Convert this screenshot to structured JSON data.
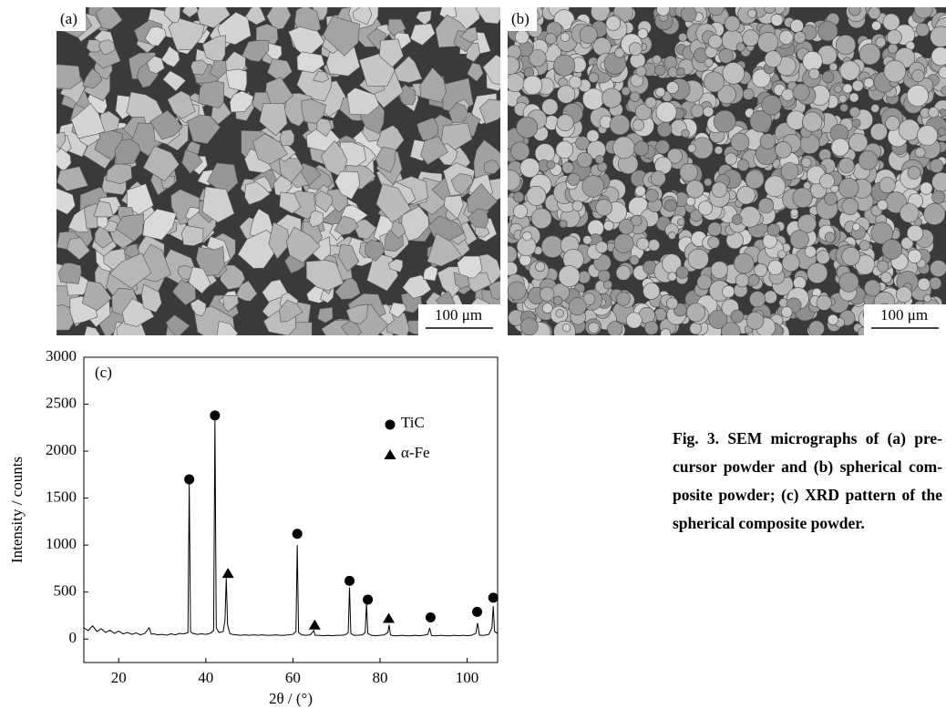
{
  "panels": [
    {
      "label": "(a)",
      "scale_bar": "100 μm",
      "kind": "angular"
    },
    {
      "label": "(b)",
      "scale_bar": "100 μm",
      "kind": "spherical"
    }
  ],
  "chart_data": {
    "type": "line",
    "panel_label": "(c)",
    "x_label": "2θ / (°)",
    "y_label": "Intensity / counts",
    "xlim": [
      12,
      107
    ],
    "xticks": [
      20,
      40,
      60,
      80,
      100
    ],
    "ylim": [
      -250,
      3000
    ],
    "yticks": [
      0,
      500,
      1000,
      1500,
      2000,
      2500,
      3000
    ],
    "color": "#000000",
    "legend": "upper right",
    "x": [
      12,
      13,
      14,
      15,
      16,
      17,
      18,
      19,
      20,
      21,
      22,
      23,
      24,
      25,
      26,
      27,
      27.5,
      28,
      29,
      30,
      31,
      32,
      33,
      34,
      35,
      35.9,
      36.2,
      36.5,
      37,
      38,
      39,
      40,
      41,
      41.8,
      42.1,
      42.4,
      43,
      44,
      44.4,
      44.7,
      45,
      45.5,
      46,
      47,
      48,
      49,
      50,
      51,
      52,
      53,
      54,
      55,
      56,
      57,
      58,
      59,
      60,
      60.7,
      61,
      61.3,
      62,
      63,
      64,
      64.8,
      65.1,
      66,
      67,
      68,
      69,
      70,
      71,
      72,
      72.7,
      73,
      73.3,
      74,
      75,
      76,
      76.6,
      76.9,
      77.2,
      78,
      79,
      80,
      81,
      81.8,
      82.1,
      82.4,
      83,
      84,
      85,
      86,
      87,
      88,
      89,
      90,
      91,
      91.4,
      91.8,
      92,
      93,
      94,
      95,
      96,
      97,
      98,
      99,
      100,
      101,
      102,
      102.4,
      102.8,
      103,
      104,
      105,
      105.7,
      106,
      106.3,
      107
    ],
    "values": [
      120,
      90,
      140,
      80,
      110,
      70,
      95,
      60,
      85,
      55,
      70,
      50,
      65,
      45,
      60,
      120,
      50,
      55,
      45,
      50,
      40,
      55,
      45,
      60,
      55,
      70,
      1650,
      80,
      60,
      50,
      55,
      50,
      60,
      90,
      2350,
      120,
      70,
      80,
      200,
      650,
      150,
      60,
      50,
      45,
      40,
      45,
      40,
      45,
      40,
      45,
      40,
      40,
      45,
      40,
      40,
      45,
      50,
      80,
      1000,
      70,
      45,
      40,
      45,
      90,
      40,
      40,
      35,
      40,
      35,
      40,
      40,
      45,
      70,
      550,
      60,
      40,
      40,
      45,
      70,
      380,
      60,
      40,
      35,
      40,
      45,
      70,
      150,
      45,
      35,
      35,
      40,
      35,
      35,
      40,
      35,
      40,
      50,
      120,
      40,
      35,
      35,
      40,
      35,
      35,
      40,
      35,
      40,
      35,
      40,
      60,
      170,
      45,
      40,
      40,
      50,
      120,
      350,
      80,
      60
    ],
    "markers": [
      {
        "name": "TiC",
        "shape": "circle",
        "x": [
          36.2,
          42.1,
          61,
          73,
          77.2,
          91.6,
          102.3,
          106
        ],
        "y": [
          1700,
          2380,
          1120,
          620,
          420,
          230,
          290,
          440
        ]
      },
      {
        "name": "α-Fe",
        "shape": "triangle",
        "x": [
          45.1,
          65,
          82
        ],
        "y": [
          700,
          150,
          220
        ]
      }
    ]
  },
  "caption": [
    "Fig. 3.  SEM micrographs of (a) pre-",
    "cursor powder and (b) spherical com-",
    "posite powder; (c) XRD pattern of the",
    "spherical composite powder."
  ]
}
